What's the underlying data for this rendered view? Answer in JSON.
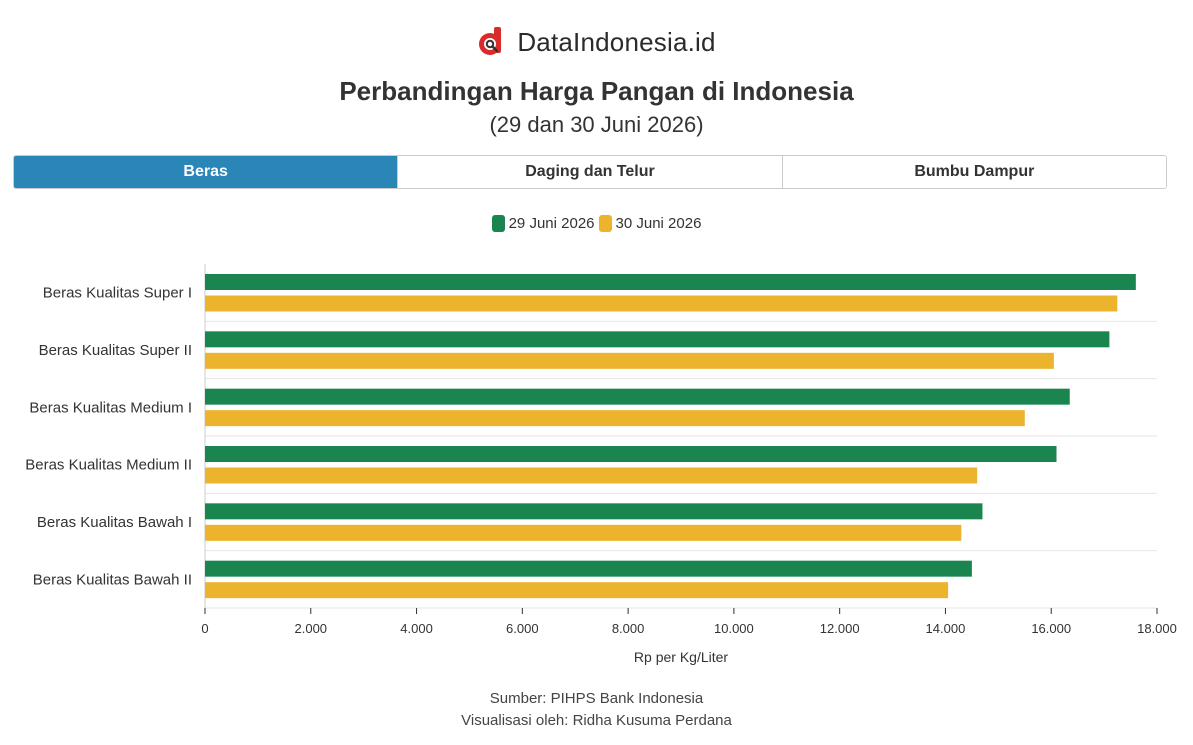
{
  "brand": {
    "name": "DataIndonesia.id",
    "logo_icon": "dataindonesia-logo-icon"
  },
  "header": {
    "title": "Perbandingan Harga Pangan di Indonesia",
    "subtitle": "(29 dan 30 Juni 2026)"
  },
  "tabs": [
    {
      "label": "Beras",
      "active": true
    },
    {
      "label": "Daging dan Telur",
      "active": false
    },
    {
      "label": "Bumbu Dampur",
      "active": false
    }
  ],
  "colors": {
    "series_1": "#1b8550",
    "series_2": "#ebb42c",
    "tab_active": "#2a86b7"
  },
  "chart_data": {
    "type": "bar",
    "orientation": "horizontal",
    "categories": [
      "Beras Kualitas Super I",
      "Beras Kualitas Super II",
      "Beras Kualitas Medium I",
      "Beras Kualitas Medium II",
      "Beras Kualitas Bawah I",
      "Beras Kualitas Bawah II"
    ],
    "series": [
      {
        "name": "29 Juni 2026",
        "values": [
          17600,
          17100,
          16350,
          16100,
          14700,
          14500
        ]
      },
      {
        "name": "30 Juni 2026",
        "values": [
          17250,
          16050,
          15500,
          14600,
          14300,
          14050
        ]
      }
    ],
    "xlabel": "Rp per Kg/Liter",
    "xlim": [
      0,
      18000
    ],
    "xticks": [
      0,
      2000,
      4000,
      6000,
      8000,
      10000,
      12000,
      14000,
      16000,
      18000
    ],
    "xtick_labels": [
      "0",
      "2.000",
      "4.000",
      "6.000",
      "8.000",
      "10.000",
      "12.000",
      "14.000",
      "16.000",
      "18.000"
    ],
    "grid": true,
    "legend_position": "top"
  },
  "footer": {
    "source": "Sumber: PIHPS Bank Indonesia",
    "credit": "Visualisasi oleh: Ridha Kusuma Perdana"
  }
}
